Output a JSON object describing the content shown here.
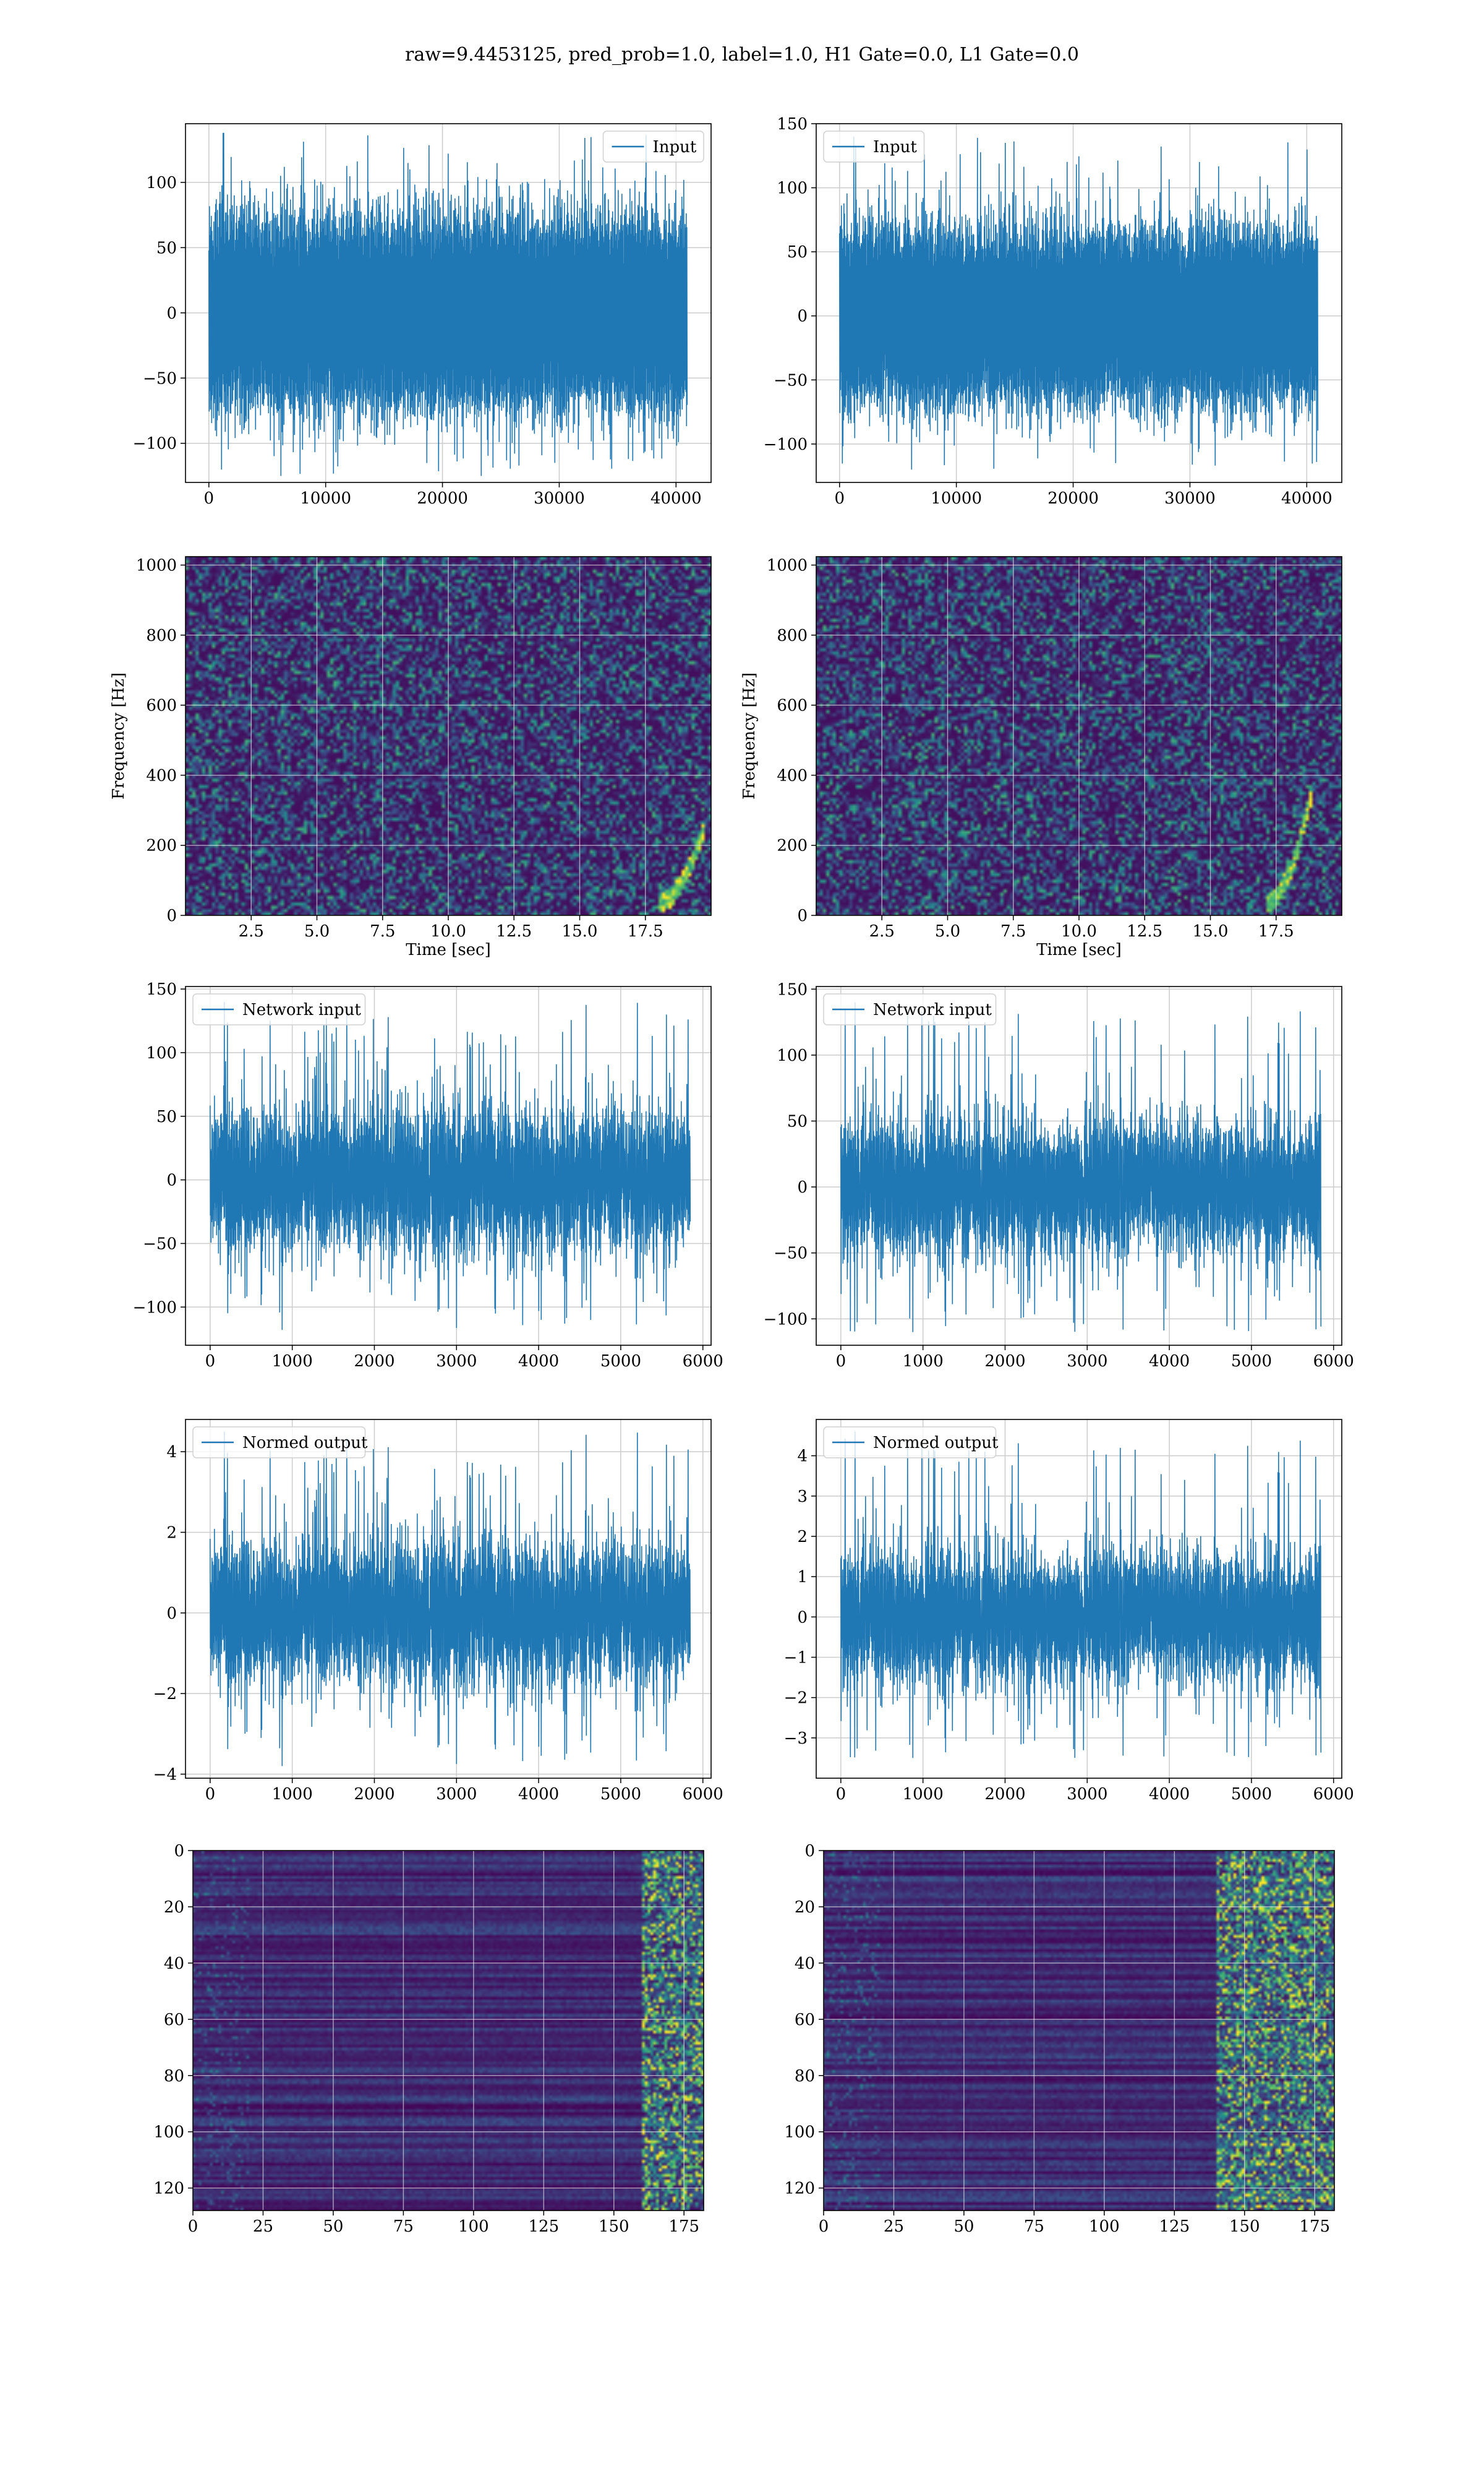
{
  "figure": {
    "title": "raw=9.4453125, pred_prob=1.0, label=1.0, H1 Gate=0.0, L1 Gate=0.0"
  },
  "colors": {
    "line": "#1f77b4",
    "grid": "#cccccc",
    "viridis_dark": "#440154",
    "viridis_blue": "#31688e",
    "viridis_teal": "#21918c",
    "viridis_green": "#35b779",
    "viridis_yellow": "#fde725"
  },
  "chart_data": [
    {
      "id": "input-h1",
      "type": "line",
      "legend": "Input",
      "legend_loc": "upper right",
      "xlim": [
        -2000,
        43000
      ],
      "ylim": [
        -130,
        145
      ],
      "xticks": [
        0,
        10000,
        20000,
        30000,
        40000
      ],
      "yticks": [
        -100,
        -50,
        0,
        50,
        100
      ],
      "xtick_labels": [
        "0",
        "10000",
        "20000",
        "30000",
        "40000"
      ],
      "ytick_labels": [
        "−100",
        "−50",
        "0",
        "50",
        "100"
      ],
      "signal": {
        "length": 40960,
        "amplitude_sd": 30,
        "peak_max": 138,
        "peak_min": -125,
        "seed": 11
      },
      "xlabel": "",
      "ylabel": ""
    },
    {
      "id": "input-l1",
      "type": "line",
      "legend": "Input",
      "legend_loc": "upper left",
      "xlim": [
        -2000,
        43000
      ],
      "ylim": [
        -130,
        150
      ],
      "xticks": [
        0,
        10000,
        20000,
        30000,
        40000
      ],
      "yticks": [
        -100,
        -50,
        0,
        50,
        100,
        150
      ],
      "xtick_labels": [
        "0",
        "10000",
        "20000",
        "30000",
        "40000"
      ],
      "ytick_labels": [
        "−100",
        "−50",
        "0",
        "50",
        "100",
        "150"
      ],
      "signal": {
        "length": 40960,
        "amplitude_sd": 28,
        "peak_max": 140,
        "peak_min": -120,
        "seed": 23
      },
      "xlabel": "",
      "ylabel": ""
    },
    {
      "id": "spectrogram-h1",
      "type": "heatmap",
      "xlim": [
        0,
        20
      ],
      "ylim": [
        0,
        1024
      ],
      "xticks": [
        2.5,
        5.0,
        7.5,
        10.0,
        12.5,
        15.0,
        17.5
      ],
      "yticks": [
        0,
        200,
        400,
        600,
        800,
        1000
      ],
      "xtick_labels": [
        "2.5",
        "5.0",
        "7.5",
        "10.0",
        "12.5",
        "15.0",
        "17.5"
      ],
      "ytick_labels": [
        "0",
        "200",
        "400",
        "600",
        "800",
        "1000"
      ],
      "xlabel": "Time [sec]",
      "ylabel": "Frequency [Hz]",
      "chirp": {
        "t_end": 19.5,
        "f_max": 220
      },
      "seed": 5
    },
    {
      "id": "spectrogram-l1",
      "type": "heatmap",
      "xlim": [
        0,
        20
      ],
      "ylim": [
        0,
        1024
      ],
      "xticks": [
        2.5,
        5.0,
        7.5,
        10.0,
        12.5,
        15.0,
        17.5
      ],
      "yticks": [
        0,
        200,
        400,
        600,
        800,
        1000
      ],
      "xtick_labels": [
        "2.5",
        "5.0",
        "7.5",
        "10.0",
        "12.5",
        "15.0",
        "17.5"
      ],
      "ytick_labels": [
        "0",
        "200",
        "400",
        "600",
        "800",
        "1000"
      ],
      "xlabel": "Time [sec]",
      "ylabel": "Frequency [Hz]",
      "chirp": {
        "t_end": 18.6,
        "f_max": 320
      },
      "seed": 9
    },
    {
      "id": "network-input-h1",
      "type": "line",
      "legend": "Network input",
      "legend_loc": "upper left",
      "xlim": [
        -300,
        6100
      ],
      "ylim": [
        -130,
        152
      ],
      "xticks": [
        0,
        1000,
        2000,
        3000,
        4000,
        5000,
        6000
      ],
      "yticks": [
        -100,
        -50,
        0,
        50,
        100,
        150
      ],
      "xtick_labels": [
        "0",
        "1000",
        "2000",
        "3000",
        "4000",
        "5000",
        "6000"
      ],
      "ytick_labels": [
        "−100",
        "−50",
        "0",
        "50",
        "100",
        "150"
      ],
      "signal": {
        "length": 5850,
        "amplitude_sd": 27,
        "peak_max": 140,
        "peak_min": -118,
        "seed": 31
      },
      "xlabel": "",
      "ylabel": ""
    },
    {
      "id": "network-input-l1",
      "type": "line",
      "legend": "Network input",
      "legend_loc": "upper left",
      "xlim": [
        -300,
        6100
      ],
      "ylim": [
        -120,
        152
      ],
      "xticks": [
        0,
        1000,
        2000,
        3000,
        4000,
        5000,
        6000
      ],
      "yticks": [
        -100,
        -50,
        0,
        50,
        100,
        150
      ],
      "xtick_labels": [
        "0",
        "1000",
        "2000",
        "3000",
        "4000",
        "5000",
        "6000"
      ],
      "ytick_labels": [
        "−100",
        "−50",
        "0",
        "50",
        "100",
        "150"
      ],
      "signal": {
        "length": 5850,
        "amplitude_sd": 25,
        "peak_max": 140,
        "peak_min": -110,
        "seed": 47
      },
      "xlabel": "",
      "ylabel": ""
    },
    {
      "id": "normed-output-h1",
      "type": "line",
      "legend": "Normed output",
      "legend_loc": "upper left",
      "xlim": [
        -300,
        6100
      ],
      "ylim": [
        -4.1,
        4.8
      ],
      "xticks": [
        0,
        1000,
        2000,
        3000,
        4000,
        5000,
        6000
      ],
      "yticks": [
        -4,
        -2,
        0,
        2,
        4
      ],
      "xtick_labels": [
        "0",
        "1000",
        "2000",
        "3000",
        "4000",
        "5000",
        "6000"
      ],
      "ytick_labels": [
        "−4",
        "−2",
        "0",
        "2",
        "4"
      ],
      "signal": {
        "length": 5850,
        "amplitude_sd": 0.85,
        "peak_max": 4.5,
        "peak_min": -3.8,
        "seed": 31
      },
      "xlabel": "",
      "ylabel": ""
    },
    {
      "id": "normed-output-l1",
      "type": "line",
      "legend": "Normed output",
      "legend_loc": "upper left",
      "xlim": [
        -300,
        6100
      ],
      "ylim": [
        -4.0,
        4.9
      ],
      "xticks": [
        0,
        1000,
        2000,
        3000,
        4000,
        5000,
        6000
      ],
      "yticks": [
        -3,
        -2,
        -1,
        0,
        1,
        2,
        3,
        4
      ],
      "xtick_labels": [
        "0",
        "1000",
        "2000",
        "3000",
        "4000",
        "5000",
        "6000"
      ],
      "ytick_labels": [
        "−3",
        "−2",
        "−1",
        "0",
        "1",
        "2",
        "3",
        "4"
      ],
      "signal": {
        "length": 5850,
        "amplitude_sd": 0.8,
        "peak_max": 4.6,
        "peak_min": -3.5,
        "seed": 47
      },
      "xlabel": "",
      "ylabel": ""
    },
    {
      "id": "feature-map-h1",
      "type": "heatmap",
      "xlim": [
        0,
        182
      ],
      "ylim": [
        0,
        128
      ],
      "y_inverted": true,
      "xticks": [
        0,
        25,
        50,
        75,
        100,
        125,
        150,
        175
      ],
      "yticks": [
        0,
        20,
        40,
        60,
        80,
        100,
        120
      ],
      "xtick_labels": [
        "0",
        "25",
        "50",
        "75",
        "100",
        "125",
        "150",
        "175"
      ],
      "ytick_labels": [
        "0",
        "20",
        "40",
        "60",
        "80",
        "100",
        "120"
      ],
      "xlabel": "",
      "ylabel": "",
      "seed": 3,
      "hot_cols_start": 160
    },
    {
      "id": "feature-map-l1",
      "type": "heatmap",
      "xlim": [
        0,
        182
      ],
      "ylim": [
        0,
        128
      ],
      "y_inverted": true,
      "xticks": [
        0,
        25,
        50,
        75,
        100,
        125,
        150,
        175
      ],
      "yticks": [
        0,
        20,
        40,
        60,
        80,
        100,
        120
      ],
      "xtick_labels": [
        "0",
        "25",
        "50",
        "75",
        "100",
        "125",
        "150",
        "175"
      ],
      "ytick_labels": [
        "0",
        "20",
        "40",
        "60",
        "80",
        "100",
        "120"
      ],
      "xlabel": "",
      "ylabel": "",
      "seed": 7,
      "hot_cols_start": 140
    }
  ]
}
